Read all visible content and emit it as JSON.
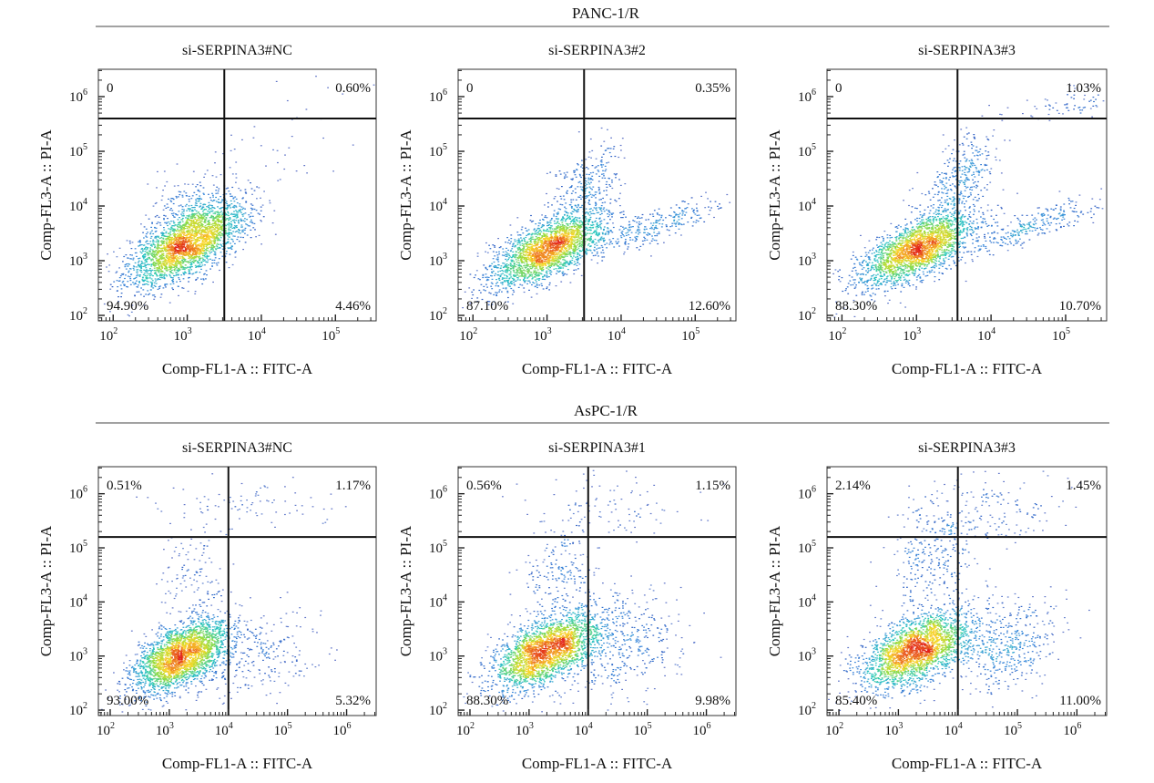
{
  "groups": [
    {
      "label": "PANC-1/R",
      "panels": [
        {
          "title": "si-SERPINA3#NC",
          "q": {
            "ul": "0",
            "ur": "0.60%",
            "ll": "94.90%",
            "lr": "4.46%"
          }
        },
        {
          "title": "si-SERPINA3#2",
          "q": {
            "ul": "0",
            "ur": "0.35%",
            "ll": "87.10%",
            "lr": "12.60%"
          }
        },
        {
          "title": "si-SERPINA3#3",
          "q": {
            "ul": "0",
            "ur": "1.03%",
            "ll": "88.30%",
            "lr": "10.70%"
          }
        }
      ]
    },
    {
      "label": "AsPC-1/R",
      "panels": [
        {
          "title": "si-SERPINA3#NC",
          "q": {
            "ul": "0.51%",
            "ur": "1.17%",
            "ll": "93.00%",
            "lr": "5.32%"
          }
        },
        {
          "title": "si-SERPINA3#1",
          "q": {
            "ul": "0.56%",
            "ur": "1.15%",
            "ll": "88.30%",
            "lr": "9.98%"
          }
        },
        {
          "title": "si-SERPINA3#3",
          "q": {
            "ul": "2.14%",
            "ur": "1.45%",
            "ll": "85.40%",
            "lr": "11.00%"
          }
        }
      ]
    }
  ],
  "chart_data": [
    {
      "type": "scatter",
      "title": "si-SERPINA3#NC",
      "xlabel": "Comp-FL1-A :: FITC-A",
      "ylabel": "Comp-FL3-A :: PI-A",
      "xscale": "log",
      "yscale": "log",
      "xlim_log10": [
        1.8,
        5.55
      ],
      "ylim_log10": [
        1.9,
        6.5
      ],
      "xticks": [
        2,
        3,
        4,
        5
      ],
      "yticks": [
        2,
        3,
        4,
        5,
        6
      ],
      "gate_log10": [
        3.5,
        5.6
      ],
      "quadrants": {
        "ul": 0,
        "ur": 0.6,
        "ll": 94.9,
        "lr": 4.46
      },
      "populations": [
        {
          "cx": 3.0,
          "cy": 3.3,
          "sx": 0.4,
          "sy": 0.38,
          "rho": 0.65,
          "n": 2600
        },
        {
          "cx": 3.1,
          "cy": 3.9,
          "sx": 0.3,
          "sy": 0.35,
          "rho": 0.2,
          "n": 250
        },
        {
          "cx": 4.4,
          "cy": 5.3,
          "sx": 0.5,
          "sy": 0.5,
          "rho": 0.4,
          "n": 40
        }
      ]
    },
    {
      "type": "scatter",
      "title": "si-SERPINA3#2",
      "xlabel": "Comp-FL1-A :: FITC-A",
      "ylabel": "Comp-FL3-A :: PI-A",
      "xscale": "log",
      "yscale": "log",
      "xlim_log10": [
        1.8,
        5.55
      ],
      "ylim_log10": [
        1.9,
        6.5
      ],
      "xticks": [
        2,
        3,
        4,
        5
      ],
      "yticks": [
        2,
        3,
        4,
        5,
        6
      ],
      "gate_log10": [
        3.5,
        5.6
      ],
      "quadrants": {
        "ul": 0,
        "ur": 0.35,
        "ll": 87.1,
        "lr": 12.6
      },
      "populations": [
        {
          "cx": 3.0,
          "cy": 3.2,
          "sx": 0.38,
          "sy": 0.34,
          "rho": 0.65,
          "n": 2300
        },
        {
          "cx": 3.5,
          "cy": 4.3,
          "sx": 0.25,
          "sy": 0.45,
          "rho": 0.5,
          "n": 300
        },
        {
          "cx": 4.4,
          "cy": 3.6,
          "sx": 0.55,
          "sy": 0.3,
          "rho": 0.85,
          "n": 320
        }
      ]
    },
    {
      "type": "scatter",
      "title": "si-SERPINA3#3",
      "xlabel": "Comp-FL1-A :: FITC-A",
      "ylabel": "Comp-FL3-A :: PI-A",
      "xscale": "log",
      "yscale": "log",
      "xlim_log10": [
        1.8,
        5.55
      ],
      "ylim_log10": [
        1.9,
        6.5
      ],
      "xticks": [
        2,
        3,
        4,
        5
      ],
      "yticks": [
        2,
        3,
        4,
        5,
        6
      ],
      "gate_log10": [
        3.55,
        5.6
      ],
      "quadrants": {
        "ul": 0,
        "ur": 1.03,
        "ll": 88.3,
        "lr": 10.7
      },
      "populations": [
        {
          "cx": 3.0,
          "cy": 3.2,
          "sx": 0.38,
          "sy": 0.34,
          "rho": 0.65,
          "n": 2300
        },
        {
          "cx": 3.6,
          "cy": 4.5,
          "sx": 0.25,
          "sy": 0.45,
          "rho": 0.5,
          "n": 350
        },
        {
          "cx": 4.5,
          "cy": 3.6,
          "sx": 0.55,
          "sy": 0.3,
          "rho": 0.85,
          "n": 300
        },
        {
          "cx": 5.0,
          "cy": 5.9,
          "sx": 0.35,
          "sy": 0.15,
          "rho": 0.3,
          "n": 60
        }
      ]
    },
    {
      "type": "scatter",
      "title": "si-SERPINA3#NC",
      "xlabel": "Comp-FL1-A :: FITC-A",
      "ylabel": "Comp-FL3-A :: PI-A",
      "xscale": "log",
      "yscale": "log",
      "xlim_log10": [
        1.8,
        6.5
      ],
      "ylim_log10": [
        1.9,
        6.5
      ],
      "xticks": [
        2,
        3,
        4,
        5,
        6
      ],
      "yticks": [
        2,
        3,
        4,
        5,
        6
      ],
      "gate_log10": [
        4.0,
        5.2
      ],
      "quadrants": {
        "ul": 0.51,
        "ur": 1.17,
        "ll": 93.0,
        "lr": 5.32
      },
      "populations": [
        {
          "cx": 3.2,
          "cy": 3.0,
          "sx": 0.4,
          "sy": 0.34,
          "rho": 0.55,
          "n": 2600
        },
        {
          "cx": 4.5,
          "cy": 3.0,
          "sx": 0.55,
          "sy": 0.4,
          "rho": 0.2,
          "n": 250
        },
        {
          "cx": 3.4,
          "cy": 4.4,
          "sx": 0.3,
          "sy": 0.45,
          "rho": 0.1,
          "n": 120
        },
        {
          "cx": 4.3,
          "cy": 5.8,
          "sx": 0.8,
          "sy": 0.25,
          "rho": 0.0,
          "n": 90
        }
      ]
    },
    {
      "type": "scatter",
      "title": "si-SERPINA3#1",
      "xlabel": "Comp-FL1-A :: FITC-A",
      "ylabel": "Comp-FL3-A :: PI-A",
      "xscale": "log",
      "yscale": "log",
      "xlim_log10": [
        1.8,
        6.5
      ],
      "ylim_log10": [
        1.9,
        6.5
      ],
      "xticks": [
        2,
        3,
        4,
        5,
        6
      ],
      "yticks": [
        2,
        3,
        4,
        5,
        6
      ],
      "gate_log10": [
        4.0,
        5.2
      ],
      "quadrants": {
        "ul": 0.56,
        "ur": 1.15,
        "ll": 88.3,
        "lr": 9.98
      },
      "populations": [
        {
          "cx": 3.3,
          "cy": 3.1,
          "sx": 0.45,
          "sy": 0.35,
          "rho": 0.55,
          "n": 2400
        },
        {
          "cx": 4.6,
          "cy": 3.2,
          "sx": 0.55,
          "sy": 0.5,
          "rho": 0.2,
          "n": 400
        },
        {
          "cx": 3.5,
          "cy": 4.5,
          "sx": 0.3,
          "sy": 0.4,
          "rho": 0.1,
          "n": 180
        },
        {
          "cx": 4.5,
          "cy": 5.7,
          "sx": 0.8,
          "sy": 0.3,
          "rho": 0.0,
          "n": 100
        }
      ]
    },
    {
      "type": "scatter",
      "title": "si-SERPINA3#3",
      "xlabel": "Comp-FL1-A :: FITC-A",
      "ylabel": "Comp-FL3-A :: PI-A",
      "xscale": "log",
      "yscale": "log",
      "xlim_log10": [
        1.8,
        6.5
      ],
      "ylim_log10": [
        1.9,
        6.5
      ],
      "xticks": [
        2,
        3,
        4,
        5,
        6
      ],
      "yticks": [
        2,
        3,
        4,
        5,
        6
      ],
      "gate_log10": [
        4.0,
        5.2
      ],
      "quadrants": {
        "ul": 2.14,
        "ur": 1.45,
        "ll": 85.4,
        "lr": 11.0
      },
      "populations": [
        {
          "cx": 3.3,
          "cy": 3.1,
          "sx": 0.45,
          "sy": 0.35,
          "rho": 0.55,
          "n": 2300
        },
        {
          "cx": 4.8,
          "cy": 3.2,
          "sx": 0.45,
          "sy": 0.4,
          "rho": 0.2,
          "n": 450
        },
        {
          "cx": 3.6,
          "cy": 4.8,
          "sx": 0.35,
          "sy": 0.55,
          "rho": 0.1,
          "n": 300
        },
        {
          "cx": 4.6,
          "cy": 5.7,
          "sx": 0.7,
          "sy": 0.3,
          "rho": 0.0,
          "n": 140
        }
      ]
    }
  ]
}
